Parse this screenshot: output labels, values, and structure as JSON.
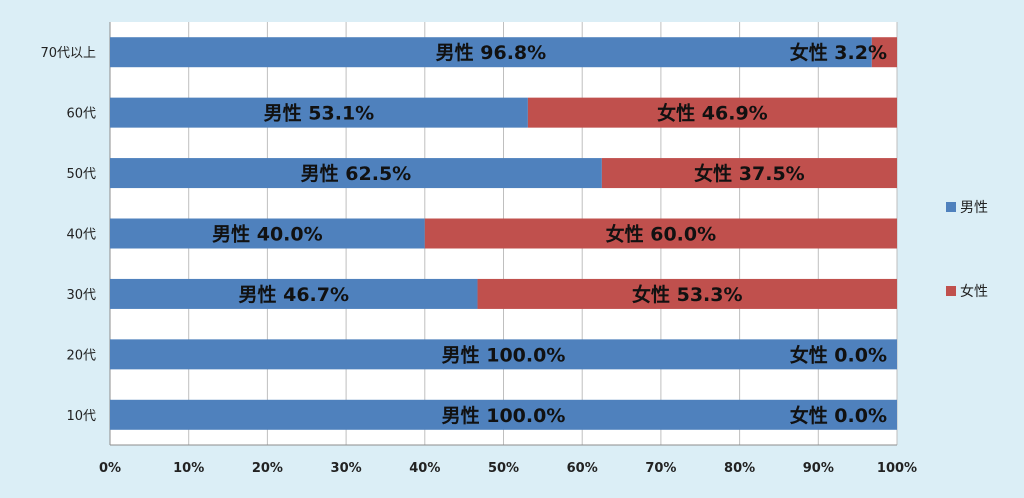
{
  "chart_data": {
    "type": "bar",
    "orientation": "horizontal",
    "stacked": "percent",
    "categories": [
      "70代以上",
      "60代",
      "50代",
      "40代",
      "30代",
      "20代",
      "10代"
    ],
    "series": [
      {
        "name": "男性",
        "color": "#4f81bd",
        "values": [
          96.8,
          53.1,
          62.5,
          40.0,
          46.7,
          100.0,
          100.0
        ],
        "labels": [
          "男性 96.8%",
          "男性 53.1%",
          "男性 62.5%",
          "男性 40.0%",
          "男性 46.7%",
          "男性 100.0%",
          "男性 100.0%"
        ]
      },
      {
        "name": "女性",
        "color": "#c0504d",
        "values": [
          3.2,
          46.9,
          37.5,
          60.0,
          53.3,
          0.0,
          0.0
        ],
        "labels": [
          "女性 3.2%",
          "女性 46.9%",
          "女性 37.5%",
          "女性 60.0%",
          "女性 53.3%",
          "女性 0.0%",
          "女性 0.0%"
        ]
      }
    ],
    "xlim": [
      0,
      100
    ],
    "xticks": [
      "0%",
      "10%",
      "20%",
      "30%",
      "40%",
      "50%",
      "60%",
      "70%",
      "80%",
      "90%",
      "100%"
    ],
    "legend": {
      "placement": "right",
      "entries": [
        "男性",
        "女性"
      ]
    },
    "grid": true,
    "title": "",
    "xlabel": "",
    "ylabel": ""
  }
}
